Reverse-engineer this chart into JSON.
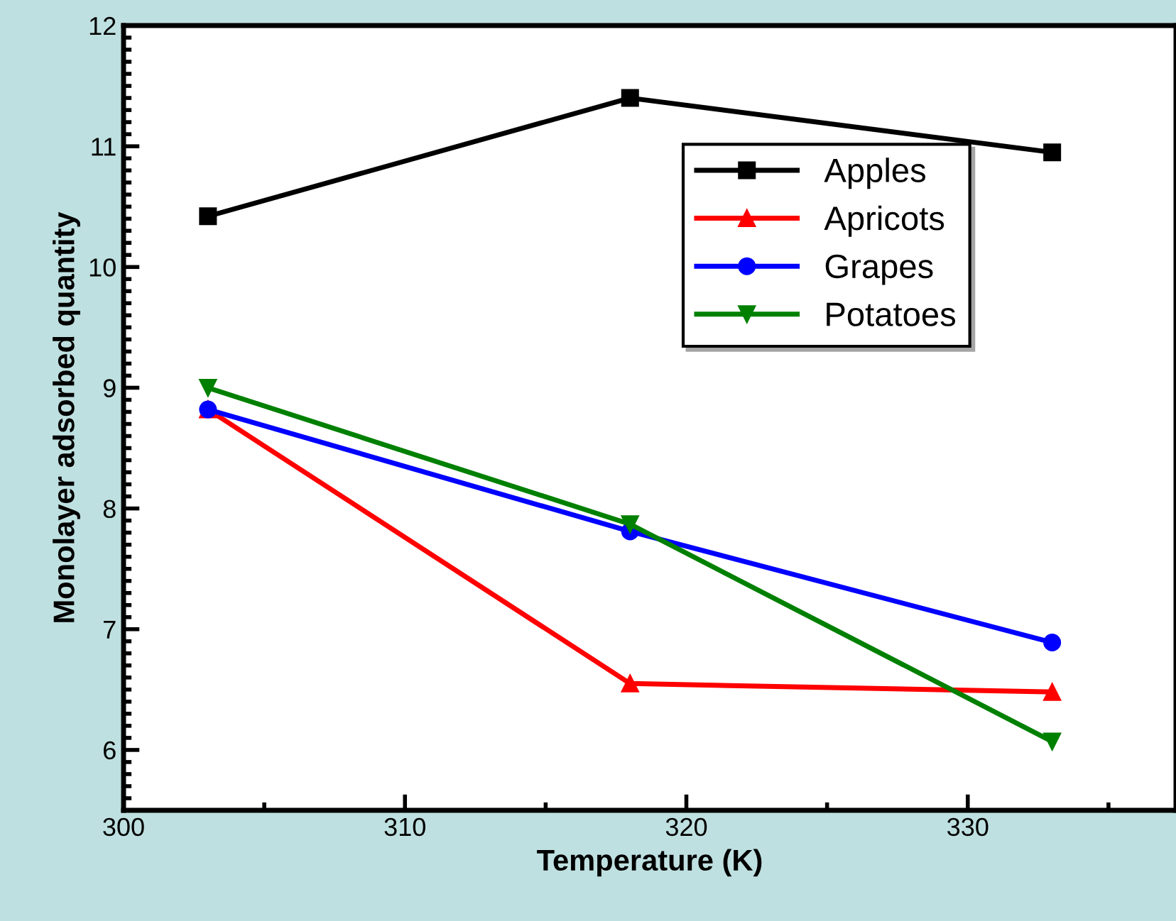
{
  "chart_data": {
    "type": "line",
    "xlabel": "Temperature (K)",
    "ylabel": "Monolayer adsorbed quantity",
    "x": [
      303,
      318,
      333
    ],
    "series": [
      {
        "name": "Apples",
        "color": "#000000",
        "marker": "square",
        "values": [
          10.42,
          11.4,
          10.95
        ]
      },
      {
        "name": "Apricots",
        "color": "#ff0000",
        "marker": "triangle",
        "values": [
          8.82,
          6.55,
          6.48
        ]
      },
      {
        "name": "Grapes",
        "color": "#0000ff",
        "marker": "circle",
        "values": [
          8.82,
          7.81,
          6.89
        ]
      },
      {
        "name": "Potatoes",
        "color": "#008000",
        "marker": "triangle_down",
        "values": [
          9.0,
          7.87,
          6.07
        ]
      }
    ],
    "xlim": [
      300,
      337.4
    ],
    "xticks": [
      300,
      310,
      320,
      330
    ],
    "ylim": [
      5.5,
      12
    ],
    "yticks": [
      6,
      7,
      8,
      9,
      10,
      11,
      12
    ],
    "grid": false,
    "legend": "right",
    "line_style": "solid"
  }
}
